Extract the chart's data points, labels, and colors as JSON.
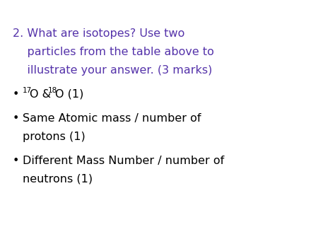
{
  "background_color": "#ffffff",
  "question_color": "#5533aa",
  "bullet_color": "#000000",
  "question_line1": "2. What are isotopes? Use two",
  "question_line2": "    particles from the table above to",
  "question_line3": "    illustrate your answer. (3 marks)",
  "bullet1_sup1": "17",
  "bullet1_main1": "O & ",
  "bullet1_sup2": "18",
  "bullet1_main2": "O (1)",
  "bullet2_line1": "Same Atomic mass / number of",
  "bullet2_line2": "protons (1)",
  "bullet3_line1": "Different Mass Number / number of",
  "bullet3_line2": "neutrons (1)",
  "q_fontsize": 11.5,
  "b_fontsize": 11.5,
  "sup_fontsize": 7.5,
  "fig_width": 4.5,
  "fig_height": 3.38,
  "dpi": 100
}
